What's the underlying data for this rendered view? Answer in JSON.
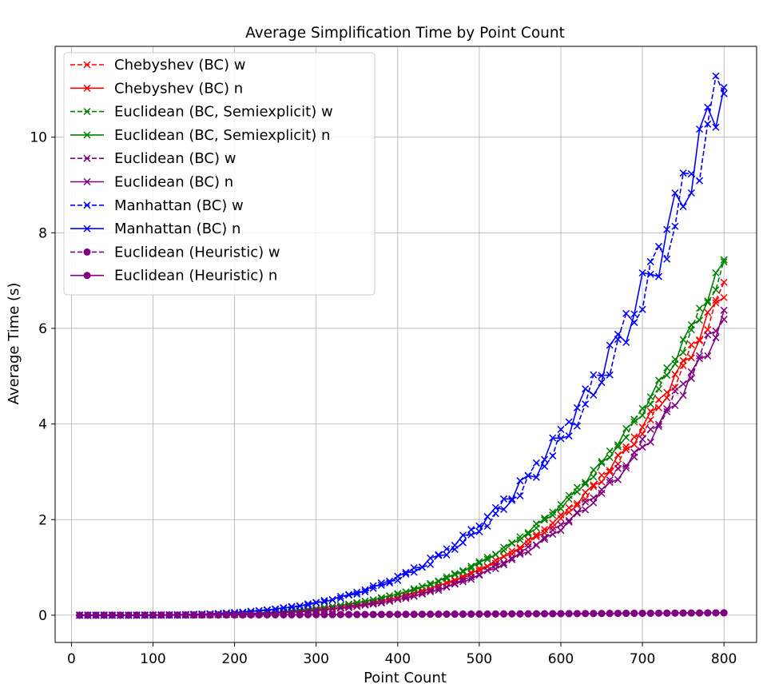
{
  "chart_data": {
    "type": "line",
    "title": "Average Simplification Time by Point Count",
    "xlabel": "Point Count",
    "ylabel": "Average Time (s)",
    "xlim": [
      -20,
      840
    ],
    "ylim": [
      -0.57,
      11.9
    ],
    "xticks": [
      0,
      100,
      200,
      300,
      400,
      500,
      600,
      700,
      800
    ],
    "yticks": [
      0,
      2,
      4,
      6,
      8,
      10
    ],
    "grid": true,
    "legend_position": "upper-left",
    "model": {
      "x_start": 10,
      "x_end": 800,
      "x_step": 10,
      "description_in_series": "each series y(x) = end * (x/800)^exponent with small wobble"
    },
    "series": [
      {
        "name": "Chebyshev  (BC)  w",
        "color": "#ff0000",
        "linestyle": "dashed",
        "marker": "x",
        "end": 6.82,
        "exponent": 4.2,
        "wobble": 0.03
      },
      {
        "name": "Chebyshev  (BC)  n",
        "color": "#ff0000",
        "linestyle": "solid",
        "marker": "x",
        "end": 6.85,
        "exponent": 4.2,
        "wobble": 0.03
      },
      {
        "name": "Euclidean  (BC, Semiexplicit)  w",
        "color": "#008000",
        "linestyle": "dashed",
        "marker": "x",
        "end": 7.32,
        "exponent": 4.05,
        "wobble": 0.025
      },
      {
        "name": "Euclidean  (BC, Semiexplicit)  n",
        "color": "#008000",
        "linestyle": "solid",
        "marker": "x",
        "end": 7.36,
        "exponent": 4.05,
        "wobble": 0.025
      },
      {
        "name": "Euclidean  (BC)  w",
        "color": "#800080",
        "linestyle": "dashed",
        "marker": "x",
        "end": 6.35,
        "exponent": 4.25,
        "wobble": 0.03
      },
      {
        "name": "Euclidean  (BC)  n",
        "color": "#800080",
        "linestyle": "solid",
        "marker": "x",
        "end": 6.2,
        "exponent": 4.25,
        "wobble": 0.03
      },
      {
        "name": "Manhattan  (BC)  w",
        "color": "#0000ff",
        "linestyle": "dashed",
        "marker": "x",
        "end": 11.2,
        "exponent": 3.85,
        "wobble": 0.06
      },
      {
        "name": "Manhattan  (BC)  n",
        "color": "#0000ff",
        "linestyle": "solid",
        "marker": "x",
        "end": 11.3,
        "exponent": 3.85,
        "wobble": 0.06
      },
      {
        "name": "Euclidean  (Heuristic)  w",
        "color": "#800080",
        "linestyle": "dashed",
        "marker": "o",
        "end": 0.05,
        "exponent": 1.5,
        "wobble": 0.005
      },
      {
        "name": "Euclidean  (Heuristic)  n",
        "color": "#800080",
        "linestyle": "solid",
        "marker": "o",
        "end": 0.05,
        "exponent": 1.5,
        "wobble": 0.005
      }
    ]
  }
}
